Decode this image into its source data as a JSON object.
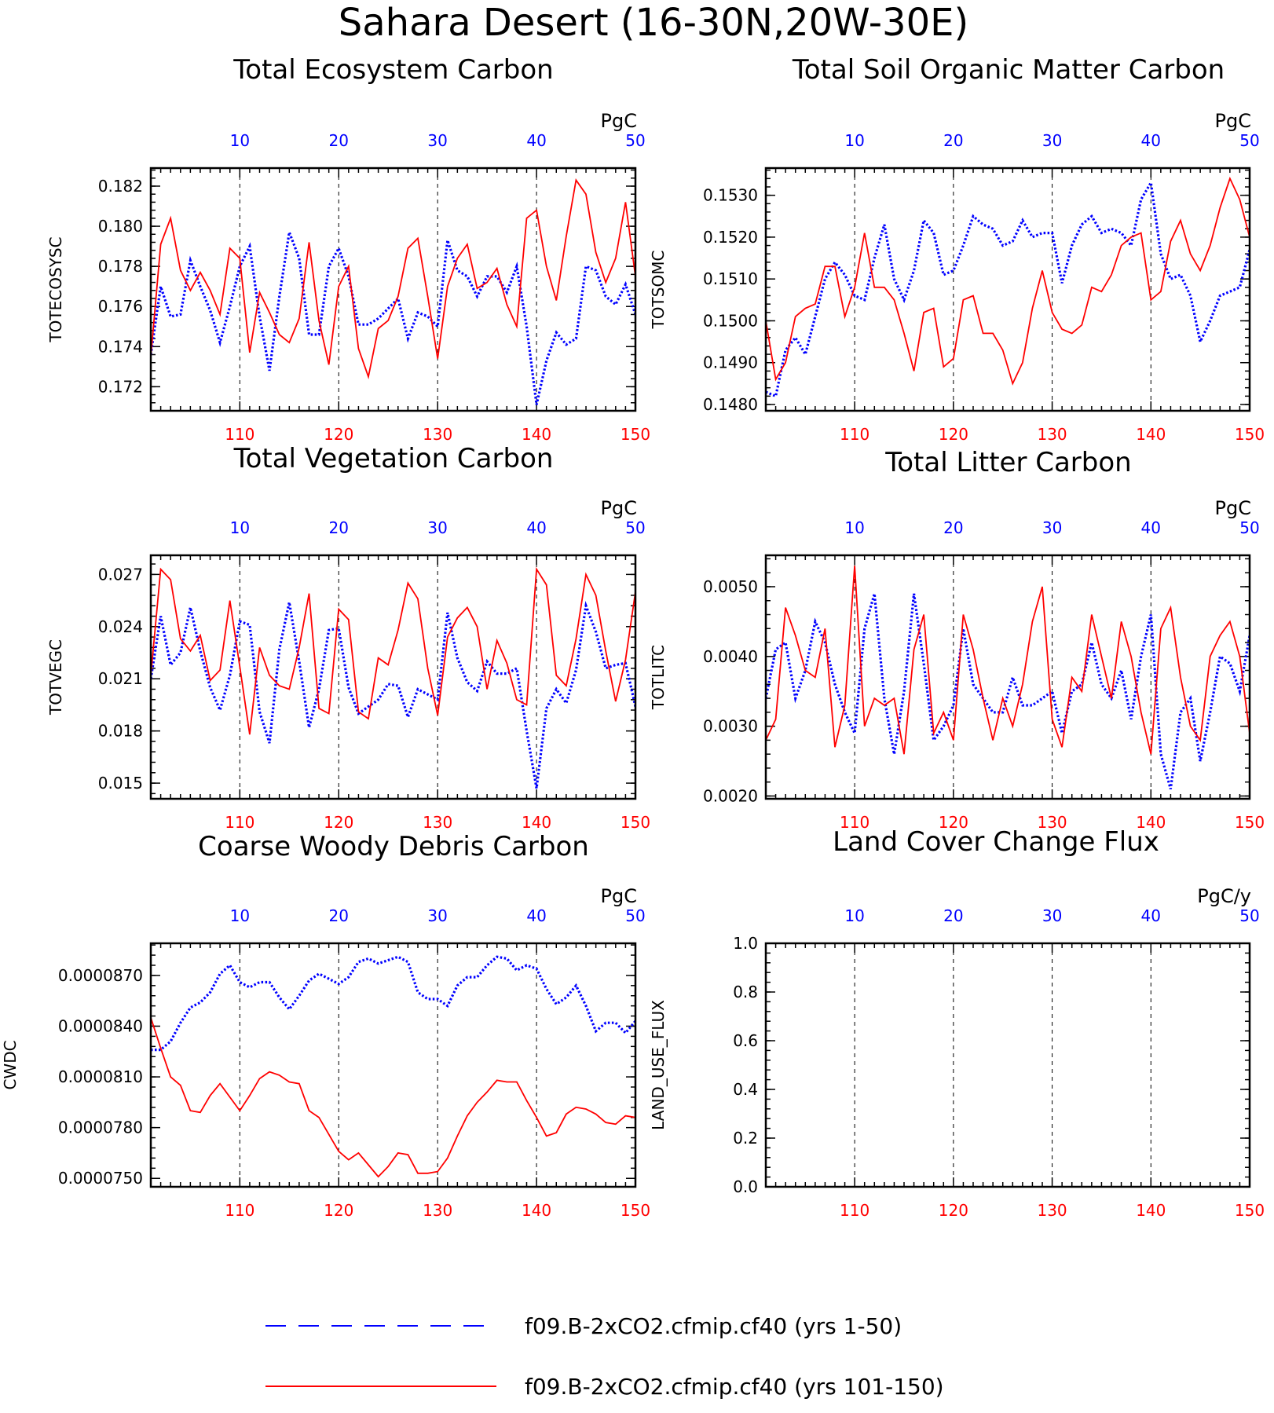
{
  "page": {
    "title": "Sahara Desert (16-30N,20W-30E)"
  },
  "legend": {
    "blue_label": "f09.B-2xCO2.cfmip.cf40 (yrs 1-50)",
    "red_label": "f09.B-2xCO2.cfmip.cf40 (yrs 101-150)",
    "blue_color": "#0000ff",
    "red_color": "#ff0000"
  },
  "chart_data": [
    {
      "type": "line",
      "title": "Total Ecosystem Carbon",
      "ylabel": "TOTECOSYSC",
      "unit": "PgC",
      "ylim": [
        0.1708,
        0.1829
      ],
      "yticks": [
        "0.182",
        "0.180",
        "0.178",
        "0.176",
        "0.174",
        "0.172"
      ],
      "x_bottom": {
        "range": [
          101,
          150
        ],
        "ticks": [
          "110",
          "120",
          "130",
          "140",
          "150"
        ],
        "color": "#ff0000"
      },
      "x_top": {
        "range": [
          1,
          50
        ],
        "ticks": [
          "10",
          "20",
          "30",
          "40",
          "50"
        ],
        "color": "#0000ff"
      },
      "grid": "vertical dashed at tick positions",
      "series": [
        {
          "name": "f09.B-2xCO2.cfmip.cf40 (yrs 1-50)",
          "style": "dotted",
          "color": "#0000ff",
          "values": [
            0.1736,
            0.177,
            0.1755,
            0.1756,
            0.1783,
            0.177,
            0.1758,
            0.1742,
            0.176,
            0.178,
            0.179,
            0.1755,
            0.1728,
            0.1765,
            0.1797,
            0.1784,
            0.1746,
            0.1746,
            0.178,
            0.1789,
            0.1775,
            0.1751,
            0.1751,
            0.1754,
            0.1759,
            0.1764,
            0.1744,
            0.1757,
            0.1755,
            0.175,
            0.1793,
            0.1778,
            0.1775,
            0.1765,
            0.1775,
            0.1775,
            0.1767,
            0.178,
            0.175,
            0.1711,
            0.1733,
            0.1747,
            0.1741,
            0.1744,
            0.178,
            0.1778,
            0.1765,
            0.1761,
            0.1771,
            0.1756
          ]
        },
        {
          "name": "f09.B-2xCO2.cfmip.cf40 (yrs 101-150)",
          "style": "solid",
          "color": "#ff0000",
          "values": [
            0.1735,
            0.1791,
            0.1804,
            0.1778,
            0.1768,
            0.1777,
            0.1768,
            0.1756,
            0.1789,
            0.1784,
            0.1737,
            0.1767,
            0.1757,
            0.1746,
            0.1742,
            0.1754,
            0.1792,
            0.1753,
            0.1731,
            0.177,
            0.178,
            0.1739,
            0.1725,
            0.1749,
            0.1753,
            0.1765,
            0.1789,
            0.1794,
            0.1765,
            0.1734,
            0.177,
            0.1784,
            0.1791,
            0.1769,
            0.1772,
            0.1779,
            0.1761,
            0.175,
            0.1804,
            0.1808,
            0.178,
            0.1763,
            0.1795,
            0.1823,
            0.1816,
            0.1787,
            0.1772,
            0.1784,
            0.1812,
            0.1775
          ]
        }
      ]
    },
    {
      "type": "line",
      "title": "Total Soil Organic Matter Carbon",
      "ylabel": "TOTSOMC",
      "unit": "PgC",
      "ylim": [
        0.14785,
        0.15365
      ],
      "yticks": [
        "0.1530",
        "0.1520",
        "0.1510",
        "0.1500",
        "0.1490",
        "0.1480"
      ],
      "x_bottom": {
        "range": [
          101,
          150
        ],
        "ticks": [
          "110",
          "120",
          "130",
          "140",
          "150"
        ],
        "color": "#ff0000"
      },
      "x_top": {
        "range": [
          1,
          50
        ],
        "ticks": [
          "10",
          "20",
          "30",
          "40",
          "50"
        ],
        "color": "#0000ff"
      },
      "grid": "vertical dashed at tick positions",
      "series": [
        {
          "name": "f09.B-2xCO2.cfmip.cf40 (yrs 1-50)",
          "style": "dotted",
          "color": "#0000ff",
          "values": [
            0.1483,
            0.1482,
            0.1493,
            0.1496,
            0.1492,
            0.1501,
            0.151,
            0.1514,
            0.1511,
            0.1506,
            0.1505,
            0.1515,
            0.1523,
            0.151,
            0.1505,
            0.1512,
            0.1524,
            0.1521,
            0.1511,
            0.1512,
            0.1518,
            0.1525,
            0.1523,
            0.1522,
            0.1518,
            0.1519,
            0.1524,
            0.152,
            0.1521,
            0.1521,
            0.1509,
            0.1518,
            0.1523,
            0.1525,
            0.1521,
            0.1522,
            0.1521,
            0.1518,
            0.1529,
            0.1533,
            0.1516,
            0.151,
            0.1511,
            0.1506,
            0.1495,
            0.15,
            0.1506,
            0.1507,
            0.1508,
            0.1517
          ]
        },
        {
          "name": "f09.B-2xCO2.cfmip.cf40 (yrs 101-150)",
          "style": "solid",
          "color": "#ff0000",
          "values": [
            0.15,
            0.1486,
            0.149,
            0.1501,
            0.1503,
            0.1504,
            0.1513,
            0.1513,
            0.1501,
            0.1508,
            0.1521,
            0.1508,
            0.1508,
            0.1505,
            0.1497,
            0.1488,
            0.1502,
            0.1503,
            0.1489,
            0.1491,
            0.1505,
            0.1506,
            0.1497,
            0.1497,
            0.1493,
            0.1485,
            0.149,
            0.1503,
            0.1512,
            0.1502,
            0.1498,
            0.1497,
            0.1499,
            0.1508,
            0.1507,
            0.1511,
            0.1518,
            0.152,
            0.1521,
            0.1505,
            0.1507,
            0.1519,
            0.1524,
            0.1516,
            0.1512,
            0.1518,
            0.1527,
            0.1534,
            0.1529,
            0.152
          ]
        }
      ]
    },
    {
      "type": "line",
      "title": "Total Vegetation Carbon",
      "ylabel": "TOTVEGC",
      "unit": "PgC",
      "ylim": [
        0.0141,
        0.0281
      ],
      "yticks": [
        "0.027",
        "0.024",
        "0.021",
        "0.018",
        "0.015"
      ],
      "x_bottom": {
        "range": [
          101,
          150
        ],
        "ticks": [
          "110",
          "120",
          "130",
          "140",
          "150"
        ],
        "color": "#ff0000"
      },
      "x_top": {
        "range": [
          1,
          50
        ],
        "ticks": [
          "10",
          "20",
          "30",
          "40",
          "50"
        ],
        "color": "#0000ff"
      },
      "grid": "vertical dashed at tick positions",
      "series": [
        {
          "name": "f09.B-2xCO2.cfmip.cf40 (yrs 1-50)",
          "style": "dotted",
          "color": "#0000ff",
          "values": [
            0.021,
            0.0246,
            0.0218,
            0.0225,
            0.0251,
            0.0226,
            0.0205,
            0.0192,
            0.0212,
            0.0243,
            0.0241,
            0.0191,
            0.0173,
            0.0227,
            0.0254,
            0.022,
            0.0182,
            0.0204,
            0.0238,
            0.0239,
            0.0205,
            0.019,
            0.0194,
            0.0198,
            0.0207,
            0.0206,
            0.0188,
            0.0204,
            0.0201,
            0.0198,
            0.0248,
            0.0222,
            0.0208,
            0.0203,
            0.022,
            0.0213,
            0.0213,
            0.0216,
            0.018,
            0.0147,
            0.0193,
            0.0204,
            0.0196,
            0.0215,
            0.0252,
            0.0237,
            0.0216,
            0.0218,
            0.0219,
            0.0194
          ]
        },
        {
          "name": "f09.B-2xCO2.cfmip.cf40 (yrs 101-150)",
          "style": "solid",
          "color": "#ff0000",
          "values": [
            0.0212,
            0.0273,
            0.0267,
            0.0233,
            0.0226,
            0.0235,
            0.0209,
            0.0215,
            0.0255,
            0.0217,
            0.0178,
            0.0228,
            0.0212,
            0.0206,
            0.0204,
            0.0228,
            0.0259,
            0.0193,
            0.019,
            0.025,
            0.0244,
            0.0191,
            0.0187,
            0.0222,
            0.0218,
            0.0238,
            0.0265,
            0.0256,
            0.0216,
            0.0189,
            0.0234,
            0.0245,
            0.0251,
            0.024,
            0.0204,
            0.0232,
            0.0219,
            0.0198,
            0.0195,
            0.0273,
            0.0264,
            0.0212,
            0.0206,
            0.0233,
            0.027,
            0.0258,
            0.0226,
            0.0197,
            0.0221,
            0.026
          ]
        }
      ]
    },
    {
      "type": "line",
      "title": "Total Litter Carbon",
      "ylabel": "TOTLITC",
      "unit": "PgC",
      "ylim": [
        0.00196,
        0.00545
      ],
      "yticks": [
        "0.0050",
        "0.0040",
        "0.0030",
        "0.0020"
      ],
      "x_bottom": {
        "range": [
          101,
          150
        ],
        "ticks": [
          "110",
          "120",
          "130",
          "140",
          "150"
        ],
        "color": "#ff0000"
      },
      "x_top": {
        "range": [
          1,
          50
        ],
        "ticks": [
          "10",
          "20",
          "30",
          "40",
          "50"
        ],
        "color": "#0000ff"
      },
      "grid": "vertical dashed at tick positions",
      "series": [
        {
          "name": "f09.B-2xCO2.cfmip.cf40 (yrs 1-50)",
          "style": "dotted",
          "color": "#0000ff",
          "values": [
            0.0034,
            0.0041,
            0.0042,
            0.0034,
            0.0038,
            0.0045,
            0.0042,
            0.0036,
            0.0032,
            0.0029,
            0.0044,
            0.0049,
            0.0034,
            0.0026,
            0.0035,
            0.0049,
            0.0039,
            0.0028,
            0.003,
            0.0033,
            0.0044,
            0.0036,
            0.0034,
            0.0032,
            0.0032,
            0.0037,
            0.0033,
            0.0033,
            0.0034,
            0.0035,
            0.0029,
            0.0035,
            0.0036,
            0.0042,
            0.0036,
            0.0034,
            0.0038,
            0.0031,
            0.004,
            0.0046,
            0.0026,
            0.0021,
            0.0032,
            0.0034,
            0.0025,
            0.0032,
            0.004,
            0.0039,
            0.0035,
            0.0043
          ]
        },
        {
          "name": "f09.B-2xCO2.cfmip.cf40 (yrs 101-150)",
          "style": "solid",
          "color": "#ff0000",
          "values": [
            0.0028,
            0.0031,
            0.0047,
            0.0043,
            0.0038,
            0.0037,
            0.0044,
            0.0027,
            0.0033,
            0.0053,
            0.003,
            0.0034,
            0.0033,
            0.0034,
            0.0026,
            0.0041,
            0.0046,
            0.0029,
            0.0032,
            0.0028,
            0.0046,
            0.0041,
            0.0034,
            0.0028,
            0.0034,
            0.003,
            0.0036,
            0.0045,
            0.005,
            0.0031,
            0.0027,
            0.0037,
            0.0035,
            0.0046,
            0.004,
            0.0034,
            0.0045,
            0.004,
            0.0032,
            0.0026,
            0.0044,
            0.0047,
            0.0037,
            0.003,
            0.0028,
            0.004,
            0.0043,
            0.0045,
            0.004,
            0.0029
          ]
        }
      ]
    },
    {
      "type": "line",
      "title": "Coarse Woody Debris Carbon",
      "ylabel": "CWDC",
      "unit": "PgC",
      "ylim": [
        7.45e-05,
        8.89e-05
      ],
      "yticks": [
        "0.0000870",
        "0.0000840",
        "0.0000810",
        "0.0000780",
        "0.0000750"
      ],
      "x_bottom": {
        "range": [
          101,
          150
        ],
        "ticks": [
          "110",
          "120",
          "130",
          "140",
          "150"
        ],
        "color": "#ff0000"
      },
      "x_top": {
        "range": [
          1,
          50
        ],
        "ticks": [
          "10",
          "20",
          "30",
          "40",
          "50"
        ],
        "color": "#0000ff"
      },
      "grid": "vertical dashed at tick positions",
      "series": [
        {
          "name": "f09.B-2xCO2.cfmip.cf40 (yrs 1-50)",
          "style": "dotted",
          "color": "#0000ff",
          "values": [
            8.26e-05,
            8.26e-05,
            8.31e-05,
            8.42e-05,
            8.51e-05,
            8.54e-05,
            8.6e-05,
            8.71e-05,
            8.76e-05,
            8.66e-05,
            8.63e-05,
            8.66e-05,
            8.66e-05,
            8.57e-05,
            8.5e-05,
            8.58e-05,
            8.67e-05,
            8.71e-05,
            8.68e-05,
            8.65e-05,
            8.69e-05,
            8.78e-05,
            8.8e-05,
            8.77e-05,
            8.79e-05,
            8.81e-05,
            8.78e-05,
            8.6e-05,
            8.56e-05,
            8.56e-05,
            8.52e-05,
            8.64e-05,
            8.69e-05,
            8.69e-05,
            8.76e-05,
            8.81e-05,
            8.8e-05,
            8.73e-05,
            8.76e-05,
            8.74e-05,
            8.62e-05,
            8.53e-05,
            8.57e-05,
            8.64e-05,
            8.52e-05,
            8.37e-05,
            8.42e-05,
            8.42e-05,
            8.36e-05,
            8.43e-05
          ]
        },
        {
          "name": "f09.B-2xCO2.cfmip.cf40 (yrs 101-150)",
          "style": "solid",
          "color": "#ff0000",
          "values": [
            8.45e-05,
            8.27e-05,
            8.1e-05,
            8.05e-05,
            7.9e-05,
            7.89e-05,
            7.99e-05,
            8.06e-05,
            7.98e-05,
            7.9e-05,
            7.99e-05,
            8.09e-05,
            8.13e-05,
            8.11e-05,
            8.07e-05,
            8.06e-05,
            7.9e-05,
            7.86e-05,
            7.76e-05,
            7.66e-05,
            7.61e-05,
            7.65e-05,
            7.58e-05,
            7.51e-05,
            7.57e-05,
            7.65e-05,
            7.64e-05,
            7.53e-05,
            7.53e-05,
            7.54e-05,
            7.62e-05,
            7.75e-05,
            7.87e-05,
            7.95e-05,
            8.01e-05,
            8.08e-05,
            8.07e-05,
            8.07e-05,
            7.96e-05,
            7.86e-05,
            7.75e-05,
            7.77e-05,
            7.88e-05,
            7.92e-05,
            7.91e-05,
            7.88e-05,
            7.83e-05,
            7.82e-05,
            7.87e-05,
            7.86e-05
          ]
        }
      ]
    },
    {
      "type": "line",
      "title": "Land Cover Change Flux",
      "ylabel": "LAND_USE_FLUX",
      "unit": "PgC/y",
      "ylim": [
        0.0,
        1.0
      ],
      "yticks": [
        "1.0",
        "0.8",
        "0.6",
        "0.4",
        "0.2",
        "0.0"
      ],
      "x_bottom": {
        "range": [
          101,
          150
        ],
        "ticks": [
          "110",
          "120",
          "130",
          "140",
          "150"
        ],
        "color": "#ff0000"
      },
      "x_top": {
        "range": [
          1,
          50
        ],
        "ticks": [
          "10",
          "20",
          "30",
          "40",
          "50"
        ],
        "color": "#0000ff"
      },
      "grid": "vertical dashed at tick positions",
      "series": []
    }
  ]
}
